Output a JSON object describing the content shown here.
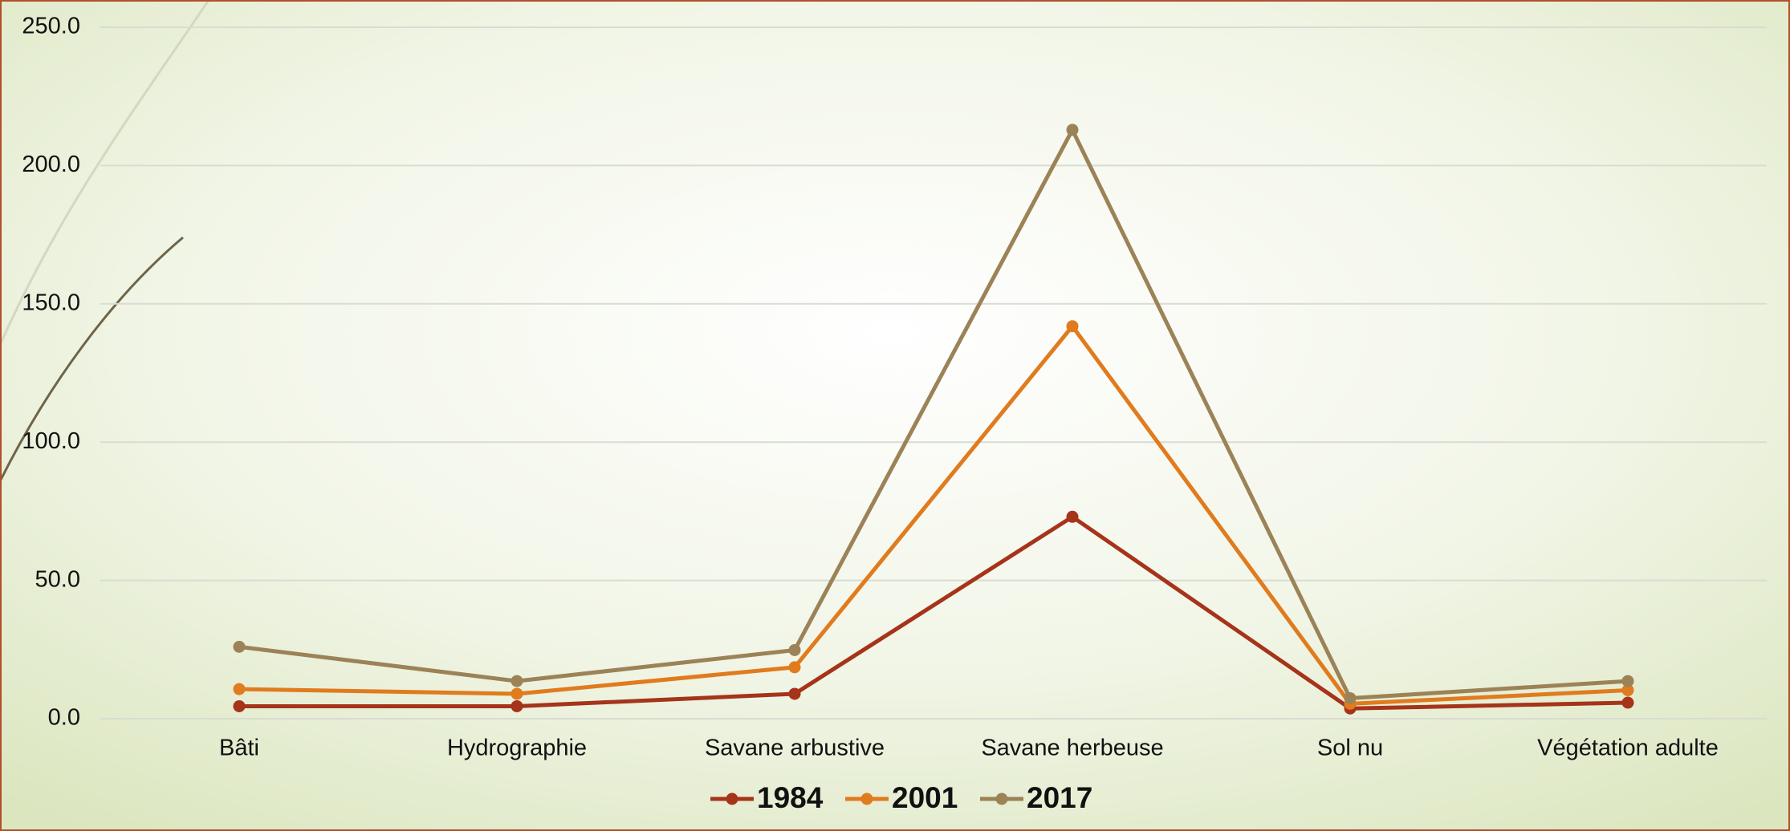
{
  "chart_data": {
    "type": "line",
    "categories": [
      "Bâti",
      "Hydrographie",
      "Savane arbustive",
      "Savane herbeuse",
      "Sol nu",
      "Végétation adulte"
    ],
    "series": [
      {
        "name": "1984",
        "color": "#a5341a",
        "values": [
          4.5,
          4.5,
          9.0,
          73.0,
          3.7,
          5.8
        ]
      },
      {
        "name": "2001",
        "color": "#e07b1e",
        "values": [
          10.7,
          9.0,
          18.6,
          141.9,
          5.4,
          10.3
        ]
      },
      {
        "name": "2017",
        "color": "#9c8257",
        "values": [
          26.0,
          13.6,
          24.8,
          212.9,
          7.4,
          13.6
        ]
      }
    ],
    "ylim": [
      0,
      250
    ],
    "yticks": [
      {
        "value": 0,
        "label": "0.0"
      },
      {
        "value": 50,
        "label": "50.0"
      },
      {
        "value": 100,
        "label": "100.0"
      },
      {
        "value": 150,
        "label": "150.0"
      },
      {
        "value": 200,
        "label": "200.0"
      },
      {
        "value": 250,
        "label": "250.0"
      }
    ],
    "grid": true,
    "legend": "bottom"
  }
}
